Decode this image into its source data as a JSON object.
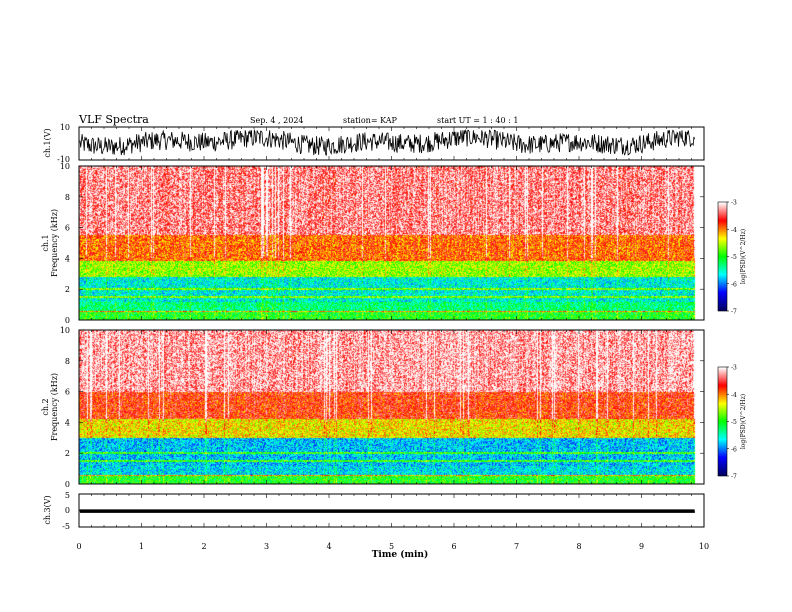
{
  "header": {
    "title": "VLF Spectra",
    "date": "Sep. 4 , 2024",
    "station": "station= KAP",
    "start": "start  UT =   1 : 40 : 1"
  },
  "colors": {
    "background": "#ffffff",
    "axes": "#000000",
    "spectrogram_high": "#ff2020",
    "spectrogram_mid": "#ffd700",
    "spectrogram_low": "#22ee22",
    "colormap": [
      "#ffffff",
      "#ff0000",
      "#ffff00",
      "#00ff00",
      "#00ffff",
      "#0000ff",
      "#000060"
    ]
  },
  "chart_data": [
    {
      "type": "line",
      "panel": "ch1-waveform",
      "ylabel": "ch.1(V)",
      "ylim": [
        -10,
        10
      ],
      "yticks": [
        "10",
        "-10"
      ],
      "x_range": [
        0,
        9.85
      ],
      "series": [
        {
          "description": "dense noisy waveform",
          "approx_range": [
            -7,
            8
          ]
        }
      ]
    },
    {
      "type": "heatmap",
      "panel": "ch1-spectrogram",
      "ylabel_1": "ch.1",
      "ylabel_2": "Frequency  (kHz)",
      "ylim": [
        0,
        10
      ],
      "yticks": [
        "0",
        "2",
        "4",
        "6",
        "8",
        "10"
      ],
      "x_range": [
        0,
        9.85
      ],
      "bands": [
        {
          "from": 0,
          "to": 0.6,
          "level": -5.0
        },
        {
          "from": 0.6,
          "to": 1.2,
          "level": -5.3
        },
        {
          "from": 1.2,
          "to": 2.8,
          "level": -5.6
        },
        {
          "from": 2.8,
          "to": 3.8,
          "level": -4.6
        },
        {
          "from": 3.8,
          "to": 5.5,
          "level": -3.9
        },
        {
          "from": 5.5,
          "to": 10,
          "level": -3.3
        }
      ],
      "colorbar": {
        "label": "log(PSD)(V^2/Hz)",
        "ticks": [
          "-3",
          "-4",
          "-5",
          "-6",
          "-7"
        ],
        "range": [
          -7,
          -3
        ]
      }
    },
    {
      "type": "heatmap",
      "panel": "ch2-spectrogram",
      "ylabel_1": "ch.2",
      "ylabel_2": "Frequency  (kHz)",
      "ylim": [
        0,
        10
      ],
      "yticks": [
        "0",
        "2",
        "4",
        "6",
        "8",
        "10"
      ],
      "x_range": [
        0,
        9.85
      ],
      "bands": [
        {
          "from": 0,
          "to": 0.6,
          "level": -5.0
        },
        {
          "from": 0.6,
          "to": 1.2,
          "level": -5.7
        },
        {
          "from": 1.2,
          "to": 3.0,
          "level": -5.8
        },
        {
          "from": 3.0,
          "to": 4.2,
          "level": -4.3
        },
        {
          "from": 4.2,
          "to": 6.0,
          "level": -3.7
        },
        {
          "from": 6.0,
          "to": 10,
          "level": -3.2
        }
      ],
      "colorbar": {
        "label": "log(PSD)(V^2/Hz)",
        "ticks": [
          "-3",
          "-4",
          "-5",
          "-6",
          "-7"
        ],
        "range": [
          -7,
          -3
        ]
      }
    },
    {
      "type": "line",
      "panel": "ch3-waveform",
      "ylabel": "ch.3(V)",
      "ylim": [
        -5,
        5
      ],
      "yticks": [
        "5",
        "0",
        "-5"
      ],
      "x_range": [
        0,
        9.85
      ],
      "series": [
        {
          "description": "thick flat band",
          "approx_range": [
            -0.7,
            0.3
          ]
        }
      ]
    }
  ],
  "xaxis": {
    "label": "Time  (min)",
    "xlim": [
      0,
      10
    ],
    "ticks": [
      "0",
      "1",
      "2",
      "3",
      "4",
      "5",
      "6",
      "7",
      "8",
      "9",
      "10"
    ]
  }
}
